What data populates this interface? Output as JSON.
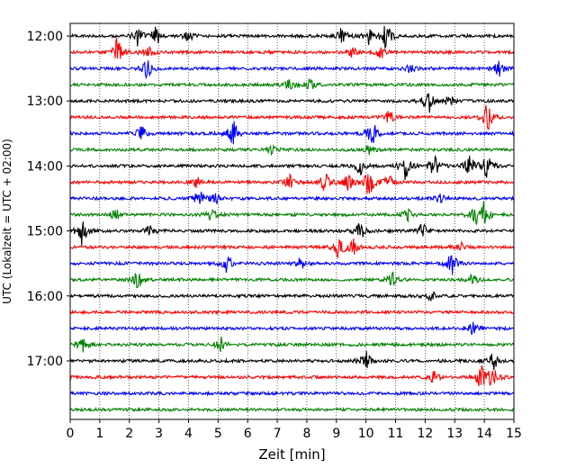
{
  "chart_data": {
    "type": "line",
    "xlabel": "Zeit  [min]",
    "ylabel": "UTC (Lokalzeit = UTC + 02:00)",
    "xlim": [
      0,
      15
    ],
    "x_ticks": [
      "0",
      "1",
      "2",
      "3",
      "4",
      "5",
      "6",
      "7",
      "8",
      "9",
      "10",
      "11",
      "12",
      "13",
      "14",
      "15"
    ],
    "y_ticks": [
      "12:00",
      "13:00",
      "14:00",
      "15:00",
      "16:00",
      "17:00"
    ],
    "grid": "vertical dotted",
    "colors": [
      "#000000",
      "#ff0000",
      "#0000ff",
      "#008000"
    ],
    "traces": [
      {
        "start": "12:00",
        "color": "#000000",
        "events": [
          {
            "t": 2.3,
            "a": 0.7
          },
          {
            "t": 2.9,
            "a": 0.6
          },
          {
            "t": 4.0,
            "a": 0.4
          },
          {
            "t": 9.2,
            "a": 0.6
          },
          {
            "t": 10.1,
            "a": 0.6
          },
          {
            "t": 10.7,
            "a": 1.0
          }
        ]
      },
      {
        "start": "12:15",
        "color": "#ff0000",
        "events": [
          {
            "t": 1.6,
            "a": 1.0
          },
          {
            "t": 2.6,
            "a": 0.6
          },
          {
            "t": 9.5,
            "a": 0.4
          },
          {
            "t": 10.5,
            "a": 0.4
          }
        ]
      },
      {
        "start": "12:30",
        "color": "#0000ff",
        "events": [
          {
            "t": 2.6,
            "a": 0.7
          },
          {
            "t": 11.5,
            "a": 0.3
          },
          {
            "t": 14.5,
            "a": 0.8
          }
        ]
      },
      {
        "start": "12:45",
        "color": "#008000",
        "events": [
          {
            "t": 7.4,
            "a": 0.4
          },
          {
            "t": 8.1,
            "a": 0.4
          }
        ]
      },
      {
        "start": "13:00",
        "color": "#000000",
        "events": [
          {
            "t": 12.1,
            "a": 1.0
          },
          {
            "t": 12.8,
            "a": 0.4
          }
        ]
      },
      {
        "start": "13:15",
        "color": "#ff0000",
        "events": [
          {
            "t": 10.8,
            "a": 0.5
          },
          {
            "t": 14.1,
            "a": 1.0
          }
        ]
      },
      {
        "start": "13:30",
        "color": "#0000ff",
        "events": [
          {
            "t": 2.4,
            "a": 0.6
          },
          {
            "t": 5.5,
            "a": 1.0
          },
          {
            "t": 10.2,
            "a": 1.0
          }
        ]
      },
      {
        "start": "13:45",
        "color": "#008000",
        "events": [
          {
            "t": 6.8,
            "a": 0.3
          },
          {
            "t": 10.1,
            "a": 0.3
          }
        ]
      },
      {
        "start": "14:00",
        "color": "#000000",
        "events": [
          {
            "t": 9.8,
            "a": 0.6
          },
          {
            "t": 11.3,
            "a": 1.0
          },
          {
            "t": 12.3,
            "a": 0.8
          },
          {
            "t": 13.5,
            "a": 0.8
          },
          {
            "t": 14.1,
            "a": 0.8
          }
        ]
      },
      {
        "start": "14:15",
        "color": "#ff0000",
        "events": [
          {
            "t": 4.3,
            "a": 0.4
          },
          {
            "t": 7.4,
            "a": 0.5
          },
          {
            "t": 8.6,
            "a": 0.7
          },
          {
            "t": 9.4,
            "a": 0.6
          },
          {
            "t": 10.1,
            "a": 1.0
          },
          {
            "t": 10.8,
            "a": 0.6
          }
        ]
      },
      {
        "start": "14:30",
        "color": "#0000ff",
        "events": [
          {
            "t": 4.4,
            "a": 1.0
          },
          {
            "t": 4.9,
            "a": 0.4
          },
          {
            "t": 12.5,
            "a": 0.3
          }
        ]
      },
      {
        "start": "14:45",
        "color": "#008000",
        "events": [
          {
            "t": 1.5,
            "a": 0.5
          },
          {
            "t": 4.8,
            "a": 0.5
          },
          {
            "t": 11.4,
            "a": 0.5
          },
          {
            "t": 13.7,
            "a": 1.0
          },
          {
            "t": 14.0,
            "a": 0.9
          }
        ]
      },
      {
        "start": "15:00",
        "color": "#000000",
        "events": [
          {
            "t": 0.4,
            "a": 1.0
          },
          {
            "t": 2.7,
            "a": 0.4
          },
          {
            "t": 9.8,
            "a": 0.6
          },
          {
            "t": 11.9,
            "a": 0.5
          }
        ]
      },
      {
        "start": "15:15",
        "color": "#ff0000",
        "events": [
          {
            "t": 9.1,
            "a": 0.8
          },
          {
            "t": 9.6,
            "a": 0.6
          },
          {
            "t": 13.2,
            "a": 0.3
          }
        ]
      },
      {
        "start": "15:30",
        "color": "#0000ff",
        "events": [
          {
            "t": 5.3,
            "a": 0.6
          },
          {
            "t": 7.8,
            "a": 0.4
          },
          {
            "t": 12.9,
            "a": 0.8
          }
        ]
      },
      {
        "start": "15:45",
        "color": "#008000",
        "events": [
          {
            "t": 2.3,
            "a": 0.6
          },
          {
            "t": 10.9,
            "a": 0.5
          },
          {
            "t": 13.6,
            "a": 0.4
          }
        ]
      },
      {
        "start": "16:00",
        "color": "#000000",
        "events": [
          {
            "t": 12.2,
            "a": 0.4
          }
        ]
      },
      {
        "start": "16:15",
        "color": "#ff0000",
        "events": []
      },
      {
        "start": "16:30",
        "color": "#0000ff",
        "events": [
          {
            "t": 13.6,
            "a": 0.6
          }
        ]
      },
      {
        "start": "16:45",
        "color": "#008000",
        "events": [
          {
            "t": 0.4,
            "a": 0.6
          },
          {
            "t": 5.1,
            "a": 0.6
          }
        ]
      },
      {
        "start": "17:00",
        "color": "#000000",
        "events": [
          {
            "t": 10.0,
            "a": 0.7
          },
          {
            "t": 14.3,
            "a": 0.6
          }
        ]
      },
      {
        "start": "17:15",
        "color": "#ff0000",
        "events": [
          {
            "t": 12.3,
            "a": 0.4
          },
          {
            "t": 13.9,
            "a": 1.0
          },
          {
            "t": 14.3,
            "a": 0.8
          }
        ]
      },
      {
        "start": "17:30",
        "color": "#0000ff",
        "events": []
      },
      {
        "start": "17:45",
        "color": "#008000",
        "events": []
      }
    ]
  }
}
